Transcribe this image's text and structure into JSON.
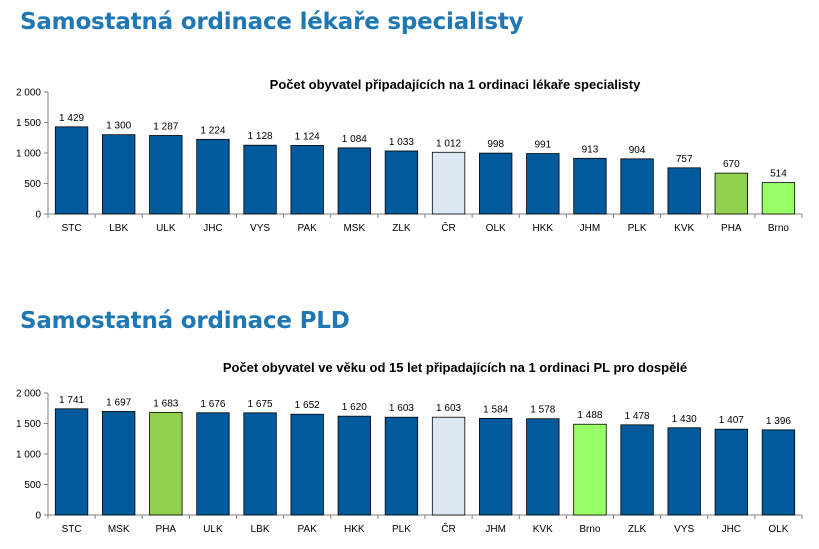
{
  "sections": [
    {
      "heading": "Samostatná ordinace lékaře specialisty"
    },
    {
      "heading": "Samostatná ordinace PLD"
    }
  ],
  "colors": {
    "heading": "#1f77b4",
    "bar_default": "#005a9c",
    "bar_cr": "#dde8f4",
    "bar_pha": "#92d050",
    "bar_brno": "#99ff66"
  },
  "chart_data": [
    {
      "type": "bar",
      "title": "Počet obyvatel připadajících na 1 ordinaci lékaře specialisty",
      "xlabel": "",
      "ylabel": "",
      "ylim": [
        0,
        2000
      ],
      "yticks": [
        0,
        500,
        1000,
        1500,
        2000
      ],
      "ytick_labels": [
        "0",
        "500",
        "1 000",
        "1 500",
        "2 000"
      ],
      "grid": false,
      "categories": [
        "STC",
        "LBK",
        "ULK",
        "JHC",
        "VYS",
        "PAK",
        "MSK",
        "ZLK",
        "ČR",
        "OLK",
        "HKK",
        "JHM",
        "PLK",
        "KVK",
        "PHA",
        "Brno"
      ],
      "values": [
        1429,
        1300,
        1287,
        1224,
        1128,
        1124,
        1084,
        1033,
        1012,
        998,
        991,
        913,
        904,
        757,
        670,
        514
      ],
      "value_labels": [
        "1 429",
        "1 300",
        "1 287",
        "1 224",
        "1 128",
        "1 124",
        "1 084",
        "1 033",
        "1 012",
        "998",
        "991",
        "913",
        "904",
        "757",
        "670",
        "514"
      ],
      "bar_colors": [
        "#005a9c",
        "#005a9c",
        "#005a9c",
        "#005a9c",
        "#005a9c",
        "#005a9c",
        "#005a9c",
        "#005a9c",
        "#dde8f4",
        "#005a9c",
        "#005a9c",
        "#005a9c",
        "#005a9c",
        "#005a9c",
        "#92d050",
        "#99ff66"
      ]
    },
    {
      "type": "bar",
      "title": "Počet obyvatel ve věku od 15 let připadajících na 1 ordinaci PL pro dospělé",
      "xlabel": "",
      "ylabel": "",
      "ylim": [
        0,
        2000
      ],
      "yticks": [
        0,
        500,
        1000,
        1500,
        2000
      ],
      "ytick_labels": [
        "0",
        "500",
        "1 000",
        "1 500",
        "2 000"
      ],
      "grid": false,
      "categories": [
        "STC",
        "MSK",
        "PHA",
        "ULK",
        "LBK",
        "PAK",
        "HKK",
        "PLK",
        "ČR",
        "JHM",
        "KVK",
        "Brno",
        "ZLK",
        "VYS",
        "JHC",
        "OLK"
      ],
      "values": [
        1741,
        1697,
        1683,
        1676,
        1675,
        1652,
        1620,
        1603,
        1603,
        1584,
        1578,
        1488,
        1478,
        1430,
        1407,
        1396
      ],
      "value_labels": [
        "1 741",
        "1 697",
        "1 683",
        "1 676",
        "1 675",
        "1 652",
        "1 620",
        "1 603",
        "1 603",
        "1 584",
        "1 578",
        "1 488",
        "1 478",
        "1 430",
        "1 407",
        "1 396"
      ],
      "bar_colors": [
        "#005a9c",
        "#005a9c",
        "#92d050",
        "#005a9c",
        "#005a9c",
        "#005a9c",
        "#005a9c",
        "#005a9c",
        "#dde8f4",
        "#005a9c",
        "#005a9c",
        "#99ff66",
        "#005a9c",
        "#005a9c",
        "#005a9c",
        "#005a9c"
      ]
    }
  ]
}
